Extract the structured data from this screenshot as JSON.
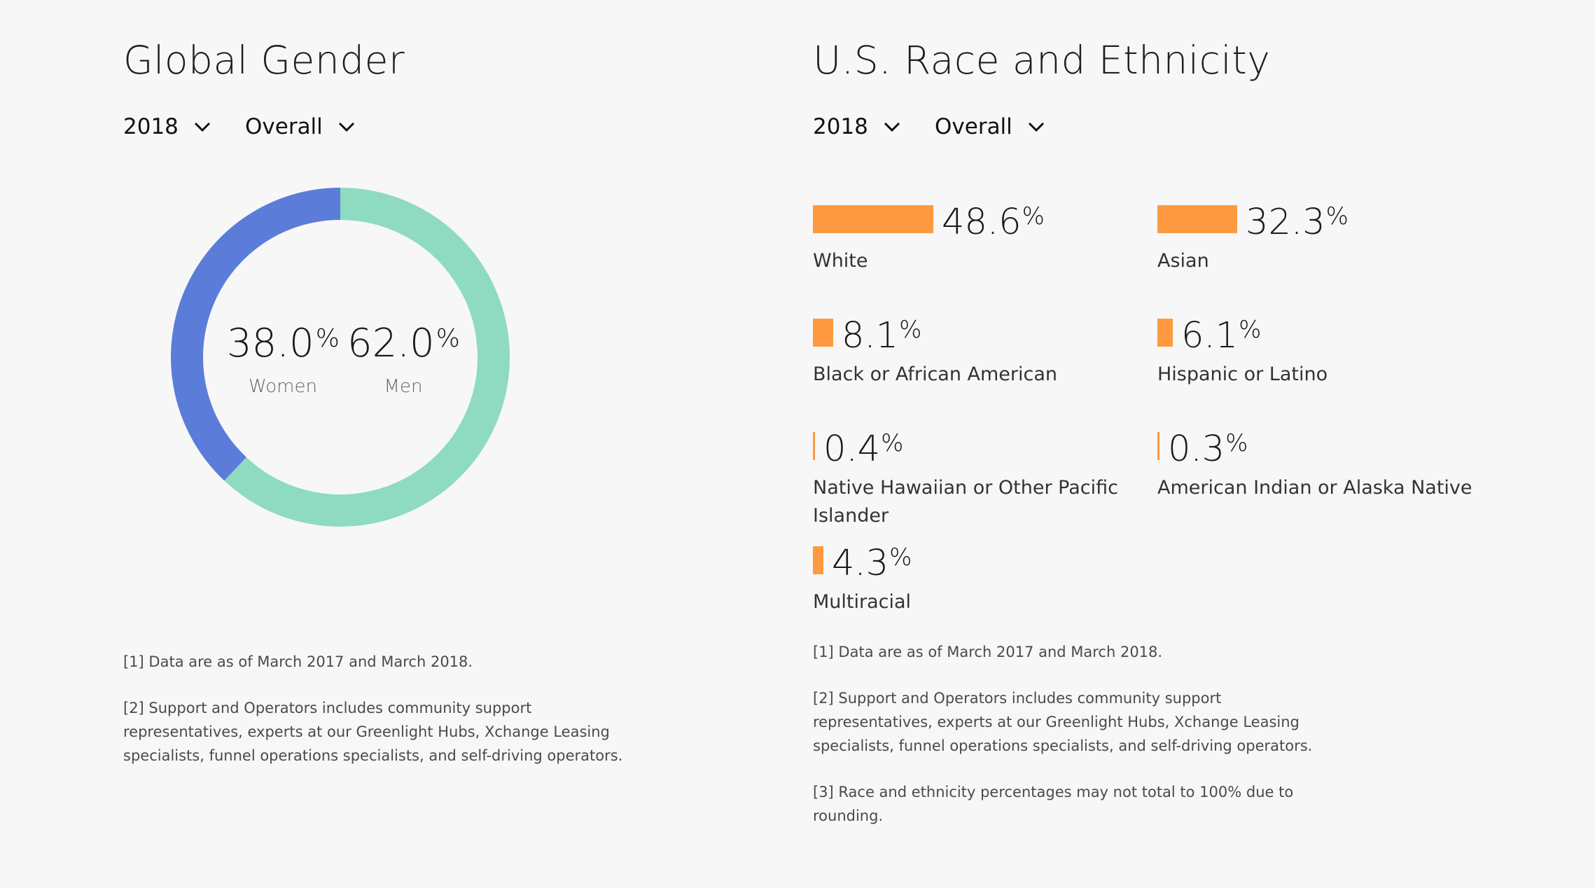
{
  "gender": {
    "title": "Global Gender",
    "year_filter": "2018",
    "group_filter": "Overall",
    "women": {
      "value": "38.0",
      "unit": "%",
      "label": "Women"
    },
    "men": {
      "value": "62.0",
      "unit": "%",
      "label": "Men"
    },
    "colors": {
      "women": "#5c7cd9",
      "men": "#8edbc2"
    },
    "footnotes": [
      "[1] Data are as of March 2017 and March 2018.",
      "[2] Support and Operators includes community support representatives, experts at our Greenlight Hubs, Xchange Leasing specialists, funnel operations specialists, and self-driving operators."
    ]
  },
  "race": {
    "title": "U.S. Race and Ethnicity",
    "year_filter": "2018",
    "group_filter": "Overall",
    "bar_color": "#ff9940",
    "items": [
      {
        "value": "48.6",
        "unit": "%",
        "label": "White"
      },
      {
        "value": "32.3",
        "unit": "%",
        "label": "Asian"
      },
      {
        "value": "8.1",
        "unit": "%",
        "label": "Black or African American"
      },
      {
        "value": "6.1",
        "unit": "%",
        "label": "Hispanic or Latino"
      },
      {
        "value": "0.4",
        "unit": "%",
        "label": "Native Hawaiian or Other Pacific Islander"
      },
      {
        "value": "0.3",
        "unit": "%",
        "label": "American Indian or Alaska Native"
      },
      {
        "value": "4.3",
        "unit": "%",
        "label": "Multiracial"
      }
    ],
    "footnotes": [
      "[1] Data are as of March 2017 and March 2018.",
      "[2] Support and Operators includes community support representatives, experts at our Greenlight Hubs, Xchange Leasing specialists, funnel operations specialists, and self-driving operators.",
      "[3] Race and ethnicity percentages may not total to 100% due to rounding."
    ]
  },
  "chart_data": [
    {
      "type": "pie",
      "title": "Global Gender",
      "categories": [
        "Women",
        "Men"
      ],
      "values": [
        38.0,
        62.0
      ]
    },
    {
      "type": "bar",
      "title": "U.S. Race and Ethnicity",
      "categories": [
        "White",
        "Asian",
        "Black or African American",
        "Hispanic or Latino",
        "Native Hawaiian or Other Pacific Islander",
        "American Indian or Alaska Native",
        "Multiracial"
      ],
      "values": [
        48.6,
        32.3,
        8.1,
        6.1,
        0.4,
        0.3,
        4.3
      ]
    }
  ]
}
